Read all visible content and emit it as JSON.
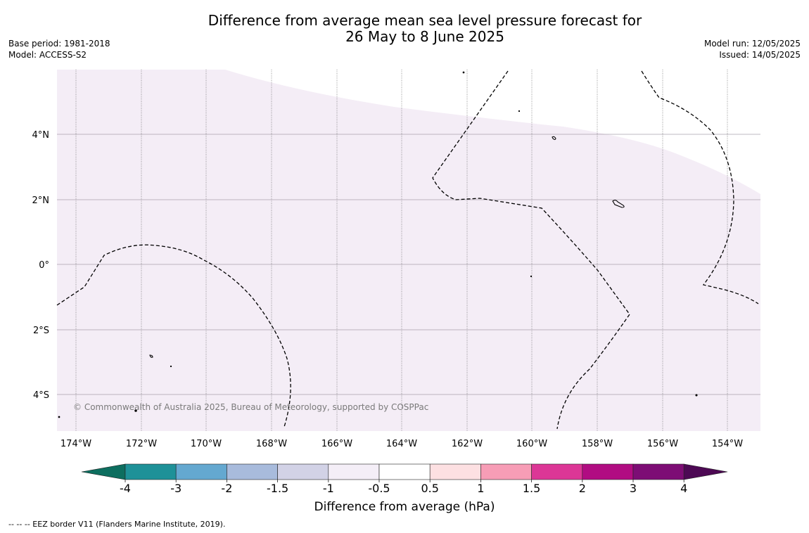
{
  "title_line1": "Difference from average mean sea level pressure forecast for",
  "title_line2": "26 May to 8 June 2025",
  "base_period": "Base period: 1981-2018",
  "model": "Model: ACCESS-S2",
  "model_run": "Model run: 12/05/2025",
  "issued": "Issued: 14/05/2025",
  "copyright": "© Commonwealth of Australia 2025, Bureau of Meteorology, supported by COSPPac",
  "footer_note": "-- -- -- EEZ border V11 (Flanders Marine Institute, 2019).",
  "lat_labels": [
    "4°N",
    "2°N",
    "0°",
    "2°S",
    "4°S"
  ],
  "lon_labels": [
    "174°W",
    "172°W",
    "170°W",
    "168°W",
    "166°W",
    "164°W",
    "162°W",
    "160°W",
    "158°W",
    "156°W",
    "154°W"
  ],
  "colorbar": {
    "label": "Difference from average (hPa)",
    "tick_labels": [
      "-4",
      "-3",
      "-2",
      "-1.5",
      "-1",
      "-0.5",
      "0.5",
      "1",
      "1.5",
      "2",
      "3",
      "4"
    ],
    "colors": [
      "#0d6e5f",
      "#1e9198",
      "#64a8d0",
      "#a8bbdc",
      "#d2d2e6",
      "#f4eef7",
      "#ffffff",
      "#fde0e2",
      "#f79db6",
      "#dc3696",
      "#b10c82",
      "#7d0d75",
      "#4d0954"
    ]
  },
  "map_fill_colors": {
    "slightly_below": "#f4edf6",
    "near_average": "#ffffff"
  }
}
